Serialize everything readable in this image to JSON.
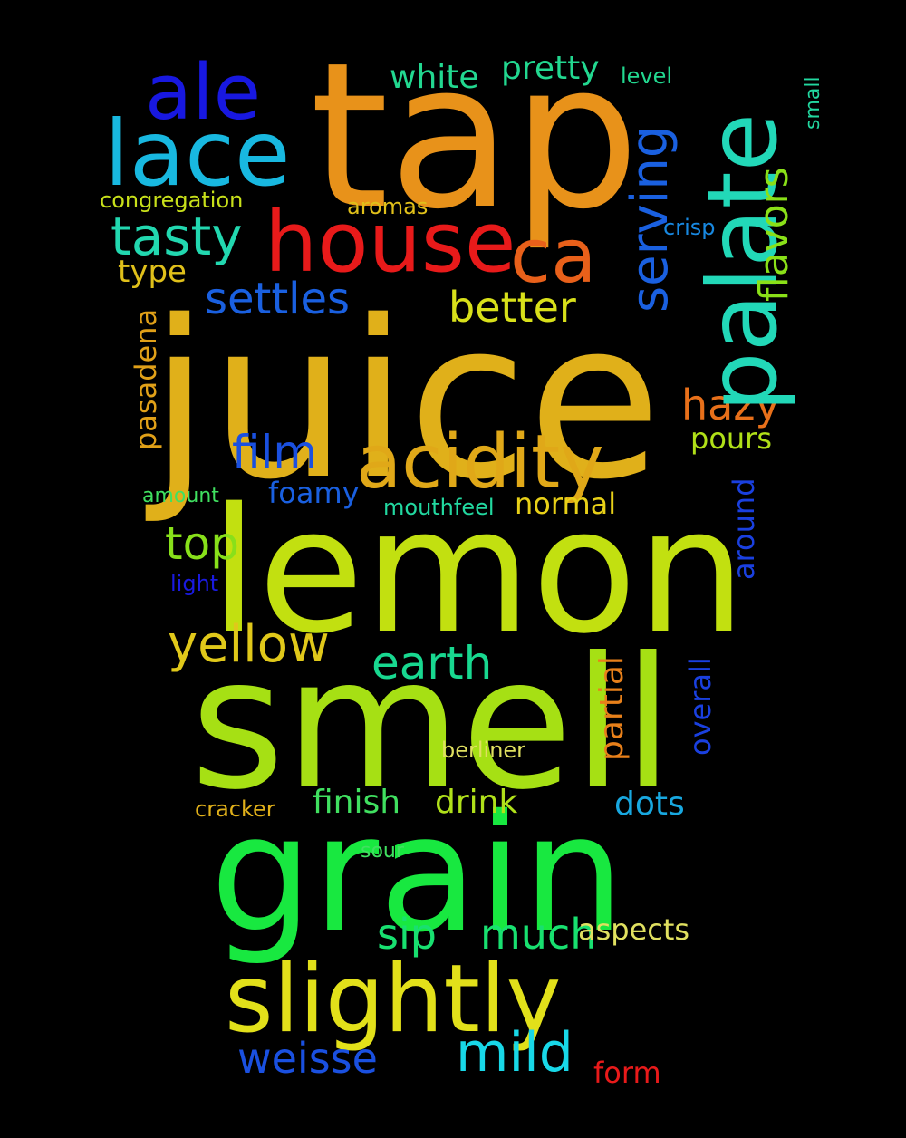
{
  "words": [
    {
      "text": "juice",
      "color": "#e0b01a"
    },
    {
      "text": "lemon",
      "color": "#c2e010"
    },
    {
      "text": "smell",
      "color": "#a6e014"
    },
    {
      "text": "tap",
      "color": "#e8921a"
    },
    {
      "text": "grain",
      "color": "#18e840"
    },
    {
      "text": "slightly",
      "color": "#e2e01a"
    },
    {
      "text": "palate",
      "color": "#22d8b8"
    },
    {
      "text": "house",
      "color": "#e81a1a"
    },
    {
      "text": "lace",
      "color": "#18b8e0"
    },
    {
      "text": "acidity",
      "color": "#e0a818"
    },
    {
      "text": "ale",
      "color": "#1818e0"
    },
    {
      "text": "ca",
      "color": "#e8601a"
    },
    {
      "text": "tasty",
      "color": "#22d8b0"
    },
    {
      "text": "serving",
      "color": "#1a60e0"
    },
    {
      "text": "settles",
      "color": "#1a60e0"
    },
    {
      "text": "better",
      "color": "#d8e01a"
    },
    {
      "text": "flavors",
      "color": "#8ae018"
    },
    {
      "text": "hazy",
      "color": "#e8701a"
    },
    {
      "text": "film",
      "color": "#1a50e0"
    },
    {
      "text": "mild",
      "color": "#18d8e8"
    },
    {
      "text": "weisse",
      "color": "#1a50e0"
    },
    {
      "text": "yellow",
      "color": "#e0c81a"
    },
    {
      "text": "earth",
      "color": "#18d890"
    },
    {
      "text": "sip",
      "color": "#18e070"
    },
    {
      "text": "much",
      "color": "#18e070"
    },
    {
      "text": "top",
      "color": "#88e01a"
    },
    {
      "text": "pretty",
      "color": "#22d890"
    },
    {
      "text": "white",
      "color": "#22d890"
    },
    {
      "text": "partial",
      "color": "#e8801a"
    },
    {
      "text": "overall",
      "color": "#1a40e0"
    },
    {
      "text": "around",
      "color": "#1a40e0"
    },
    {
      "text": "finish",
      "color": "#40e060"
    },
    {
      "text": "drink",
      "color": "#b0e01a"
    },
    {
      "text": "dots",
      "color": "#18a8e0"
    },
    {
      "text": "aspects",
      "color": "#e0e060"
    },
    {
      "text": "form",
      "color": "#e81a1a"
    },
    {
      "text": "pasadena",
      "color": "#e0a018"
    },
    {
      "text": "type",
      "color": "#e0c01a"
    },
    {
      "text": "pours",
      "color": "#b0e018"
    },
    {
      "text": "normal",
      "color": "#e8d018"
    },
    {
      "text": "foamy",
      "color": "#1a60e0"
    },
    {
      "text": "mouthfeel",
      "color": "#22d8a0"
    },
    {
      "text": "congregation",
      "color": "#c8e01a"
    },
    {
      "text": "aromas",
      "color": "#e0c01a"
    },
    {
      "text": "crisp",
      "color": "#1888e0"
    },
    {
      "text": "level",
      "color": "#22d890"
    },
    {
      "text": "small",
      "color": "#22d8a0"
    },
    {
      "text": "amount",
      "color": "#40e060"
    },
    {
      "text": "light",
      "color": "#1a1ae0"
    },
    {
      "text": "berliner",
      "color": "#e0e060"
    },
    {
      "text": "cracker",
      "color": "#e0b01a"
    },
    {
      "text": "sour",
      "color": "#40e060"
    }
  ]
}
